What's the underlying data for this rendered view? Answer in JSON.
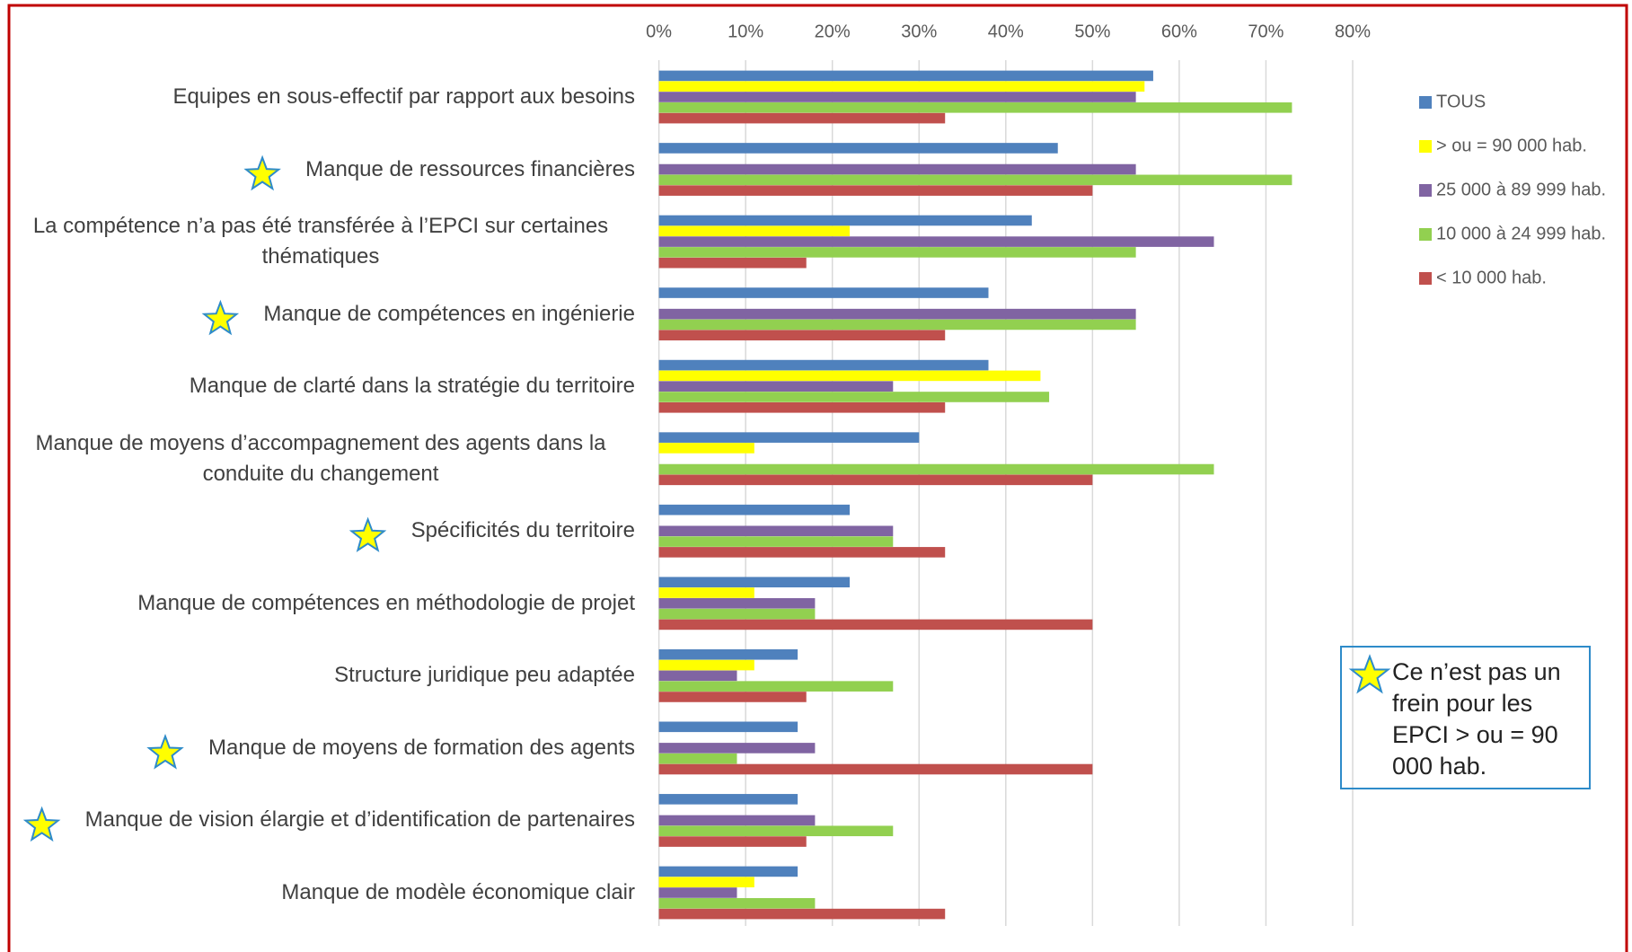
{
  "chart_data": {
    "type": "barh",
    "categories": [
      "Equipes en sous-effectif par rapport aux besoins",
      "Manque de ressources financières",
      "La compétence n’a pas été transférée à l’EPCI sur certaines thématiques",
      "Manque de compétences en ingénierie",
      "Manque de clarté dans la stratégie du territoire",
      "Manque de moyens d’accompagnement des agents dans la conduite du changement",
      "Spécificités du territoire",
      "Manque de compétences en méthodologie de projet",
      "Structure juridique peu adaptée",
      "Manque de moyens de formation des agents",
      "Manque de vision élargie et d’identification de partenaires",
      "Manque de modèle économique clair"
    ],
    "series": [
      {
        "name": "TOUS",
        "color": "#4f81bd",
        "values": [
          57,
          46,
          43,
          38,
          38,
          30,
          22,
          22,
          16,
          16,
          16,
          16
        ]
      },
      {
        "name": "> ou = 90 000 hab.",
        "color": "#ffff00",
        "values": [
          56,
          0,
          22,
          0,
          44,
          11,
          0,
          11,
          11,
          0,
          0,
          11
        ]
      },
      {
        "name": "25 000 à 89 999 hab.",
        "color": "#8064a2",
        "values": [
          55,
          55,
          64,
          55,
          27,
          0,
          27,
          18,
          9,
          18,
          18,
          9
        ]
      },
      {
        "name": "10 000 à 24 999 hab.",
        "color": "#92d050",
        "values": [
          73,
          73,
          55,
          55,
          45,
          64,
          27,
          18,
          27,
          9,
          27,
          18
        ]
      },
      {
        "name": "< 10 000 hab.",
        "color": "#c0504d",
        "values": [
          33,
          50,
          17,
          33,
          33,
          50,
          33,
          50,
          17,
          50,
          17,
          33
        ]
      }
    ],
    "xlim": [
      0,
      80
    ],
    "xticks": [
      {
        "value": 0,
        "label": "0%"
      },
      {
        "value": 10,
        "label": "10%"
      },
      {
        "value": 20,
        "label": "20%"
      },
      {
        "value": 30,
        "label": "30%"
      },
      {
        "value": 40,
        "label": "40%"
      },
      {
        "value": 50,
        "label": "50%"
      },
      {
        "value": 60,
        "label": "60%"
      },
      {
        "value": 70,
        "label": "70%"
      },
      {
        "value": 80,
        "label": "80%"
      }
    ],
    "grid": true,
    "legend": "right",
    "annotation": "Ce n’est pas un frein pour les EPCI > ou = 90 000 hab."
  }
}
